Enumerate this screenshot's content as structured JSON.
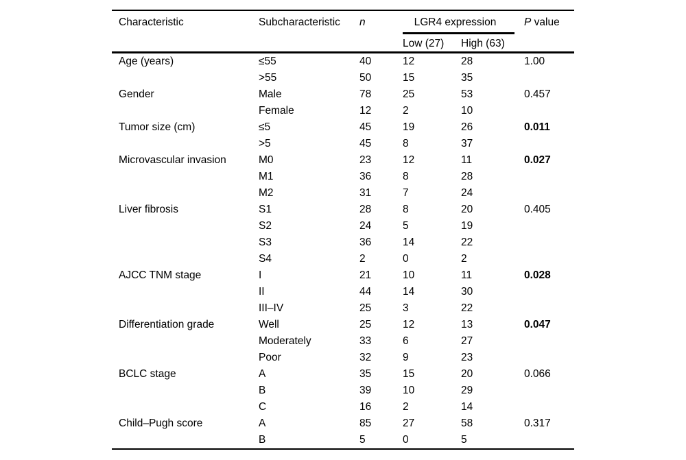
{
  "page": {
    "background": "#ffffff",
    "text_color": "#000000"
  },
  "table": {
    "header": {
      "characteristic": "Characteristic",
      "subcharacteristic": "Subcharacteristic",
      "n": "n",
      "lgr4_span": "LGR4 expression",
      "low": "Low (27)",
      "high": "High (63)",
      "p_italic": "P",
      "p_rest": " value"
    },
    "rows": [
      {
        "characteristic": "Age (years)",
        "sub": "≤55",
        "n": "40",
        "low": "12",
        "high": "28",
        "p": "1.00",
        "p_bold": false
      },
      {
        "characteristic": "",
        "sub": ">55",
        "n": "50",
        "low": "15",
        "high": "35",
        "p": "",
        "p_bold": false
      },
      {
        "characteristic": "Gender",
        "sub": "Male",
        "n": "78",
        "low": "25",
        "high": "53",
        "p": "0.457",
        "p_bold": false
      },
      {
        "characteristic": "",
        "sub": "Female",
        "n": "12",
        "low": "2",
        "high": "10",
        "p": "",
        "p_bold": false
      },
      {
        "characteristic": "Tumor size (cm)",
        "sub": "≤5",
        "n": "45",
        "low": "19",
        "high": "26",
        "p": "0.011",
        "p_bold": true
      },
      {
        "characteristic": "",
        "sub": ">5",
        "n": "45",
        "low": "8",
        "high": "37",
        "p": "",
        "p_bold": false
      },
      {
        "characteristic": "Microvascular invasion",
        "sub": "M0",
        "n": "23",
        "low": "12",
        "high": "11",
        "p": "0.027",
        "p_bold": true
      },
      {
        "characteristic": "",
        "sub": "M1",
        "n": "36",
        "low": "8",
        "high": "28",
        "p": "",
        "p_bold": false
      },
      {
        "characteristic": "",
        "sub": "M2",
        "n": "31",
        "low": "7",
        "high": "24",
        "p": "",
        "p_bold": false
      },
      {
        "characteristic": "Liver fibrosis",
        "sub": "S1",
        "n": "28",
        "low": "8",
        "high": "20",
        "p": "0.405",
        "p_bold": false
      },
      {
        "characteristic": "",
        "sub": "S2",
        "n": "24",
        "low": "5",
        "high": "19",
        "p": "",
        "p_bold": false
      },
      {
        "characteristic": "",
        "sub": "S3",
        "n": "36",
        "low": "14",
        "high": "22",
        "p": "",
        "p_bold": false
      },
      {
        "characteristic": "",
        "sub": "S4",
        "n": "2",
        "low": "0",
        "high": "2",
        "p": "",
        "p_bold": false
      },
      {
        "characteristic": "AJCC TNM stage",
        "sub": "I",
        "n": "21",
        "low": "10",
        "high": "11",
        "p": "0.028",
        "p_bold": true
      },
      {
        "characteristic": "",
        "sub": "II",
        "n": "44",
        "low": "14",
        "high": "30",
        "p": "",
        "p_bold": false
      },
      {
        "characteristic": "",
        "sub": "III–IV",
        "n": "25",
        "low": "3",
        "high": "22",
        "p": "",
        "p_bold": false
      },
      {
        "characteristic": "Differentiation grade",
        "sub": "Well",
        "n": "25",
        "low": "12",
        "high": "13",
        "p": "0.047",
        "p_bold": true
      },
      {
        "characteristic": "",
        "sub": "Moderately",
        "n": "33",
        "low": "6",
        "high": "27",
        "p": "",
        "p_bold": false
      },
      {
        "characteristic": "",
        "sub": "Poor",
        "n": "32",
        "low": "9",
        "high": "23",
        "p": "",
        "p_bold": false
      },
      {
        "characteristic": "BCLC stage",
        "sub": "A",
        "n": "35",
        "low": "15",
        "high": "20",
        "p": "0.066",
        "p_bold": false
      },
      {
        "characteristic": "",
        "sub": "B",
        "n": "39",
        "low": "10",
        "high": "29",
        "p": "",
        "p_bold": false
      },
      {
        "characteristic": "",
        "sub": "C",
        "n": "16",
        "low": "2",
        "high": "14",
        "p": "",
        "p_bold": false
      },
      {
        "characteristic": "Child–Pugh score",
        "sub": "A",
        "n": "85",
        "low": "27",
        "high": "58",
        "p": "0.317",
        "p_bold": false
      },
      {
        "characteristic": "",
        "sub": "B",
        "n": "5",
        "low": "0",
        "high": "5",
        "p": "",
        "p_bold": false
      }
    ]
  }
}
